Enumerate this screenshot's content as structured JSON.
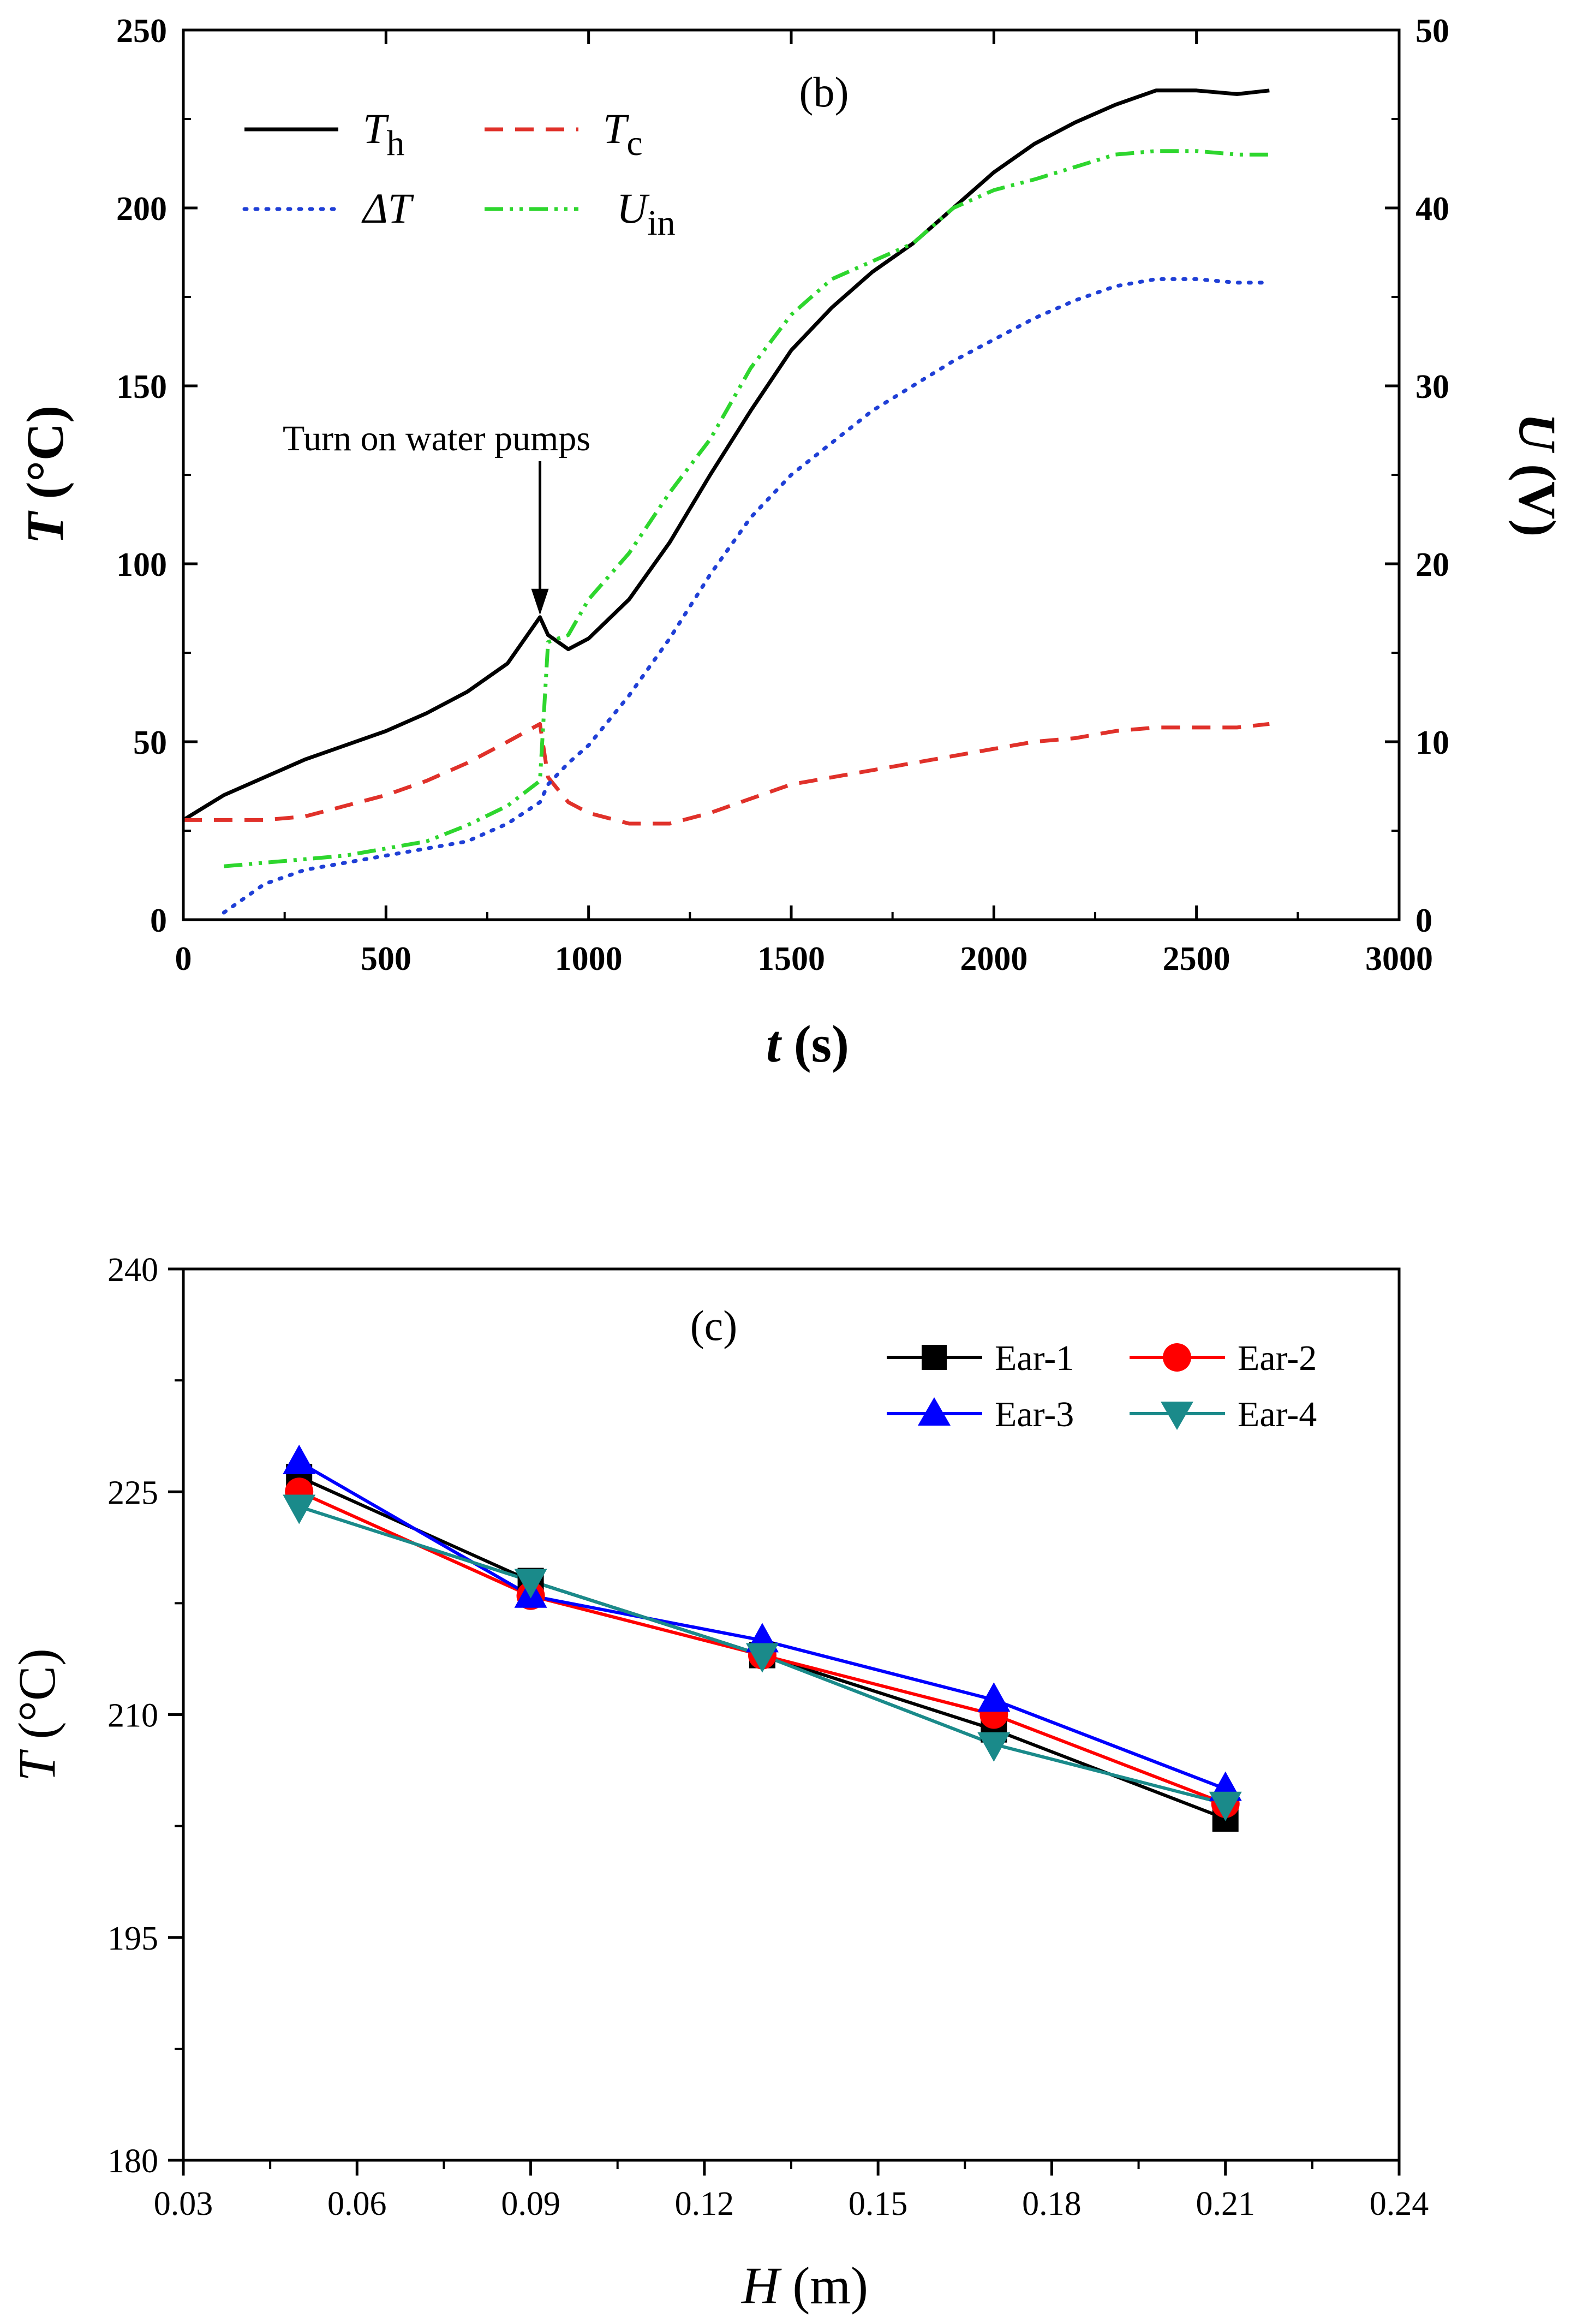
{
  "chart_data": [
    {
      "panel": "(b)",
      "type": "line",
      "title": "(b)",
      "x": [
        0,
        100,
        200,
        300,
        400,
        500,
        600,
        700,
        800,
        880,
        900,
        950,
        1000,
        1100,
        1200,
        1300,
        1400,
        1500,
        1600,
        1700,
        1800,
        1900,
        2000,
        2100,
        2200,
        2300,
        2400,
        2500,
        2600,
        2680
      ],
      "series": [
        {
          "name": "T",
          "sub": "h",
          "key": "Th",
          "axis": "left",
          "color": "#000000",
          "dash": "",
          "values": [
            28,
            35,
            40,
            45,
            49,
            53,
            58,
            64,
            72,
            85,
            80,
            76,
            79,
            90,
            106,
            125,
            143,
            160,
            172,
            182,
            190,
            200,
            210,
            218,
            224,
            229,
            233,
            233,
            232,
            233
          ]
        },
        {
          "name": "T",
          "sub": "c",
          "key": "Tc",
          "axis": "left",
          "color": "#e0312a",
          "dash": "34 22",
          "values": [
            28,
            28,
            28,
            29,
            32,
            35,
            39,
            44,
            50,
            55,
            40,
            33,
            30,
            27,
            27,
            30,
            34,
            38,
            40,
            42,
            44,
            46,
            48,
            50,
            51,
            53,
            54,
            54,
            54,
            55
          ]
        },
        {
          "name": "ΔT",
          "sub": "",
          "key": "dT",
          "axis": "left",
          "color": "#1f3fd6",
          "dash": "4 16",
          "values": [
            null,
            2,
            10,
            14,
            16,
            18,
            20,
            22,
            27,
            33,
            38,
            44,
            49,
            63,
            79,
            97,
            113,
            125,
            134,
            143,
            150,
            157,
            163,
            169,
            174,
            178,
            180,
            180,
            179,
            179
          ]
        },
        {
          "name": "U",
          "sub": "in",
          "key": "Uin",
          "axis": "right",
          "color": "#2ed62e",
          "dash": "34 12 6 12 6 12",
          "values": [
            null,
            3.0,
            3.2,
            3.4,
            3.6,
            4.0,
            4.4,
            5.3,
            6.4,
            7.8,
            15.6,
            16.0,
            18.0,
            20.6,
            24.0,
            27.0,
            31.0,
            34.0,
            36.0,
            37.0,
            38.0,
            40.0,
            41.0,
            41.6,
            42.3,
            43.0,
            43.2,
            43.2,
            43.0,
            43.0
          ]
        }
      ],
      "xlabel": "t (s)",
      "xlabel_var": "t",
      "xlabel_unit": " (s)",
      "ylabel": "T (°C)",
      "ylabel_var": "T",
      "ylabel_unit": " (°C)",
      "y2label": "U (V)",
      "y2label_var": "U",
      "y2label_unit": " (V)",
      "xlim": [
        0,
        3000
      ],
      "ylim": [
        0,
        250
      ],
      "y2lim": [
        0,
        50
      ],
      "xticks": [
        0,
        500,
        1000,
        1500,
        2000,
        2500,
        3000
      ],
      "yticks": [
        0,
        50,
        100,
        150,
        200,
        250
      ],
      "y2ticks": [
        0,
        10,
        20,
        30,
        40,
        50
      ],
      "annotation": {
        "text": "Turn on water pumps",
        "x": 880,
        "y": 85
      },
      "legend_position": "top-left",
      "grid": false
    },
    {
      "panel": "(c)",
      "type": "line",
      "title": "(c)",
      "x": [
        0.05,
        0.09,
        0.13,
        0.17,
        0.21
      ],
      "series": [
        {
          "name": "Ear-1",
          "marker": "square",
          "color": "#000000",
          "values": [
            226,
            219,
            214,
            209,
            203
          ]
        },
        {
          "name": "Ear-2",
          "marker": "circle",
          "color": "#ff0000",
          "values": [
            225,
            218,
            214,
            210,
            204
          ]
        },
        {
          "name": "Ear-3",
          "marker": "triangle-up",
          "color": "#0000ff",
          "values": [
            227,
            218,
            215,
            211,
            205
          ]
        },
        {
          "name": "Ear-4",
          "marker": "triangle-down",
          "color": "#1a8a8a",
          "values": [
            224,
            219,
            214,
            208,
            204
          ]
        }
      ],
      "xlabel": "H (m)",
      "xlabel_var": "H",
      "xlabel_unit": " (m)",
      "ylabel": "T (°C)",
      "ylabel_var": "T",
      "ylabel_unit": " (°C)",
      "xlim": [
        0.03,
        0.24
      ],
      "ylim": [
        180,
        240
      ],
      "xticks": [
        "0.03",
        "0.06",
        "0.09",
        "0.12",
        "0.15",
        "0.18",
        "0.21",
        "0.24"
      ],
      "yticks": [
        180,
        195,
        210,
        225,
        240
      ],
      "legend_position": "top-right",
      "grid": false
    }
  ]
}
